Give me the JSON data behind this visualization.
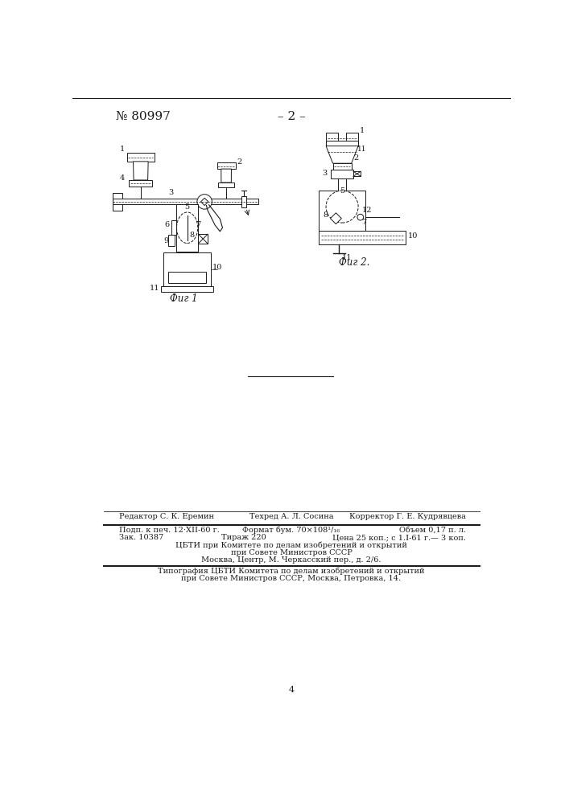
{
  "header_number": "№ 80997",
  "header_page": "– 2 –",
  "fig1_caption": "Фиг 1",
  "fig2_caption": "Фиг 2.",
  "footer_line1_left": "Редактор С. К. Еремин",
  "footer_line1_mid": "Техред А. Л. Сосина",
  "footer_line1_right": "Корректор Г. Е. Кудрявцева",
  "footer_line2a": "Подп. к печ. 12·XII-60 г.",
  "footer_line2b": "Формат бум. 70×108¹/₁₆",
  "footer_line2c": "Объем 0,17 п. л.",
  "footer_line3a": "Зак. 10387",
  "footer_line3b": "Тираж 220",
  "footer_line3c": "Цена 25 коп.; с 1.I-61 г.— 3 коп.",
  "footer_block1_line1": "ЦБТИ при Комитете по делам изобретений и открытий",
  "footer_block1_line2": "при Совете Министров СССР",
  "footer_block1_line3": "Москва, Центр, М. Черкасский пер., д. 2/6.",
  "footer_block2_line1": "Типография ЦБТИ Комитета по делам изобретений и открытий",
  "footer_block2_line2": "при Совете Министров СССР, Москва, Петровка, 14.",
  "page_number": "4",
  "bg_color": "#ffffff",
  "line_color": "#1a1a1a",
  "text_color": "#1a1a1a"
}
